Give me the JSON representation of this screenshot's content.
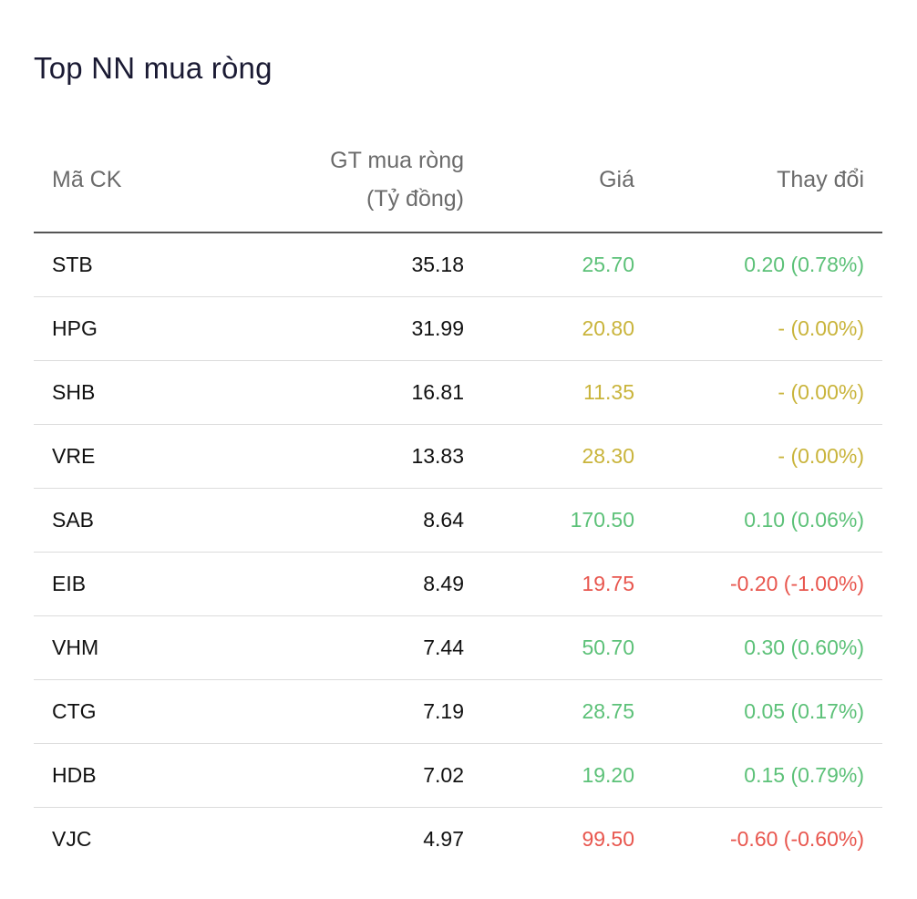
{
  "widget": {
    "title": "Top NN mua ròng"
  },
  "table": {
    "headers": {
      "symbol": "Mã CK",
      "net_buy_line1": "GT mua ròng",
      "net_buy_line2": "(Tỷ đồng)",
      "price": "Giá",
      "change": "Thay đổi"
    },
    "rows": [
      {
        "symbol": "STB",
        "net_buy": "35.18",
        "price": "25.70",
        "change": "0.20 (0.78%)",
        "status": "up"
      },
      {
        "symbol": "HPG",
        "net_buy": "31.99",
        "price": "20.80",
        "change": "- (0.00%)",
        "status": "ref"
      },
      {
        "symbol": "SHB",
        "net_buy": "16.81",
        "price": "11.35",
        "change": "- (0.00%)",
        "status": "ref"
      },
      {
        "symbol": "VRE",
        "net_buy": "13.83",
        "price": "28.30",
        "change": "- (0.00%)",
        "status": "ref"
      },
      {
        "symbol": "SAB",
        "net_buy": "8.64",
        "price": "170.50",
        "change": "0.10 (0.06%)",
        "status": "up"
      },
      {
        "symbol": "EIB",
        "net_buy": "8.49",
        "price": "19.75",
        "change": "-0.20 (-1.00%)",
        "status": "down"
      },
      {
        "symbol": "VHM",
        "net_buy": "7.44",
        "price": "50.70",
        "change": "0.30 (0.60%)",
        "status": "up"
      },
      {
        "symbol": "CTG",
        "net_buy": "7.19",
        "price": "28.75",
        "change": "0.05 (0.17%)",
        "status": "up"
      },
      {
        "symbol": "HDB",
        "net_buy": "7.02",
        "price": "19.20",
        "change": "0.15 (0.79%)",
        "status": "up"
      },
      {
        "symbol": "VJC",
        "net_buy": "4.97",
        "price": "99.50",
        "change": "-0.60 (-0.60%)",
        "status": "down"
      }
    ]
  },
  "colors": {
    "up": "#5cc178",
    "ref": "#c9b43b",
    "down": "#e8564e",
    "header_text": "#6b6b6b",
    "title_text": "#1a1a33"
  }
}
